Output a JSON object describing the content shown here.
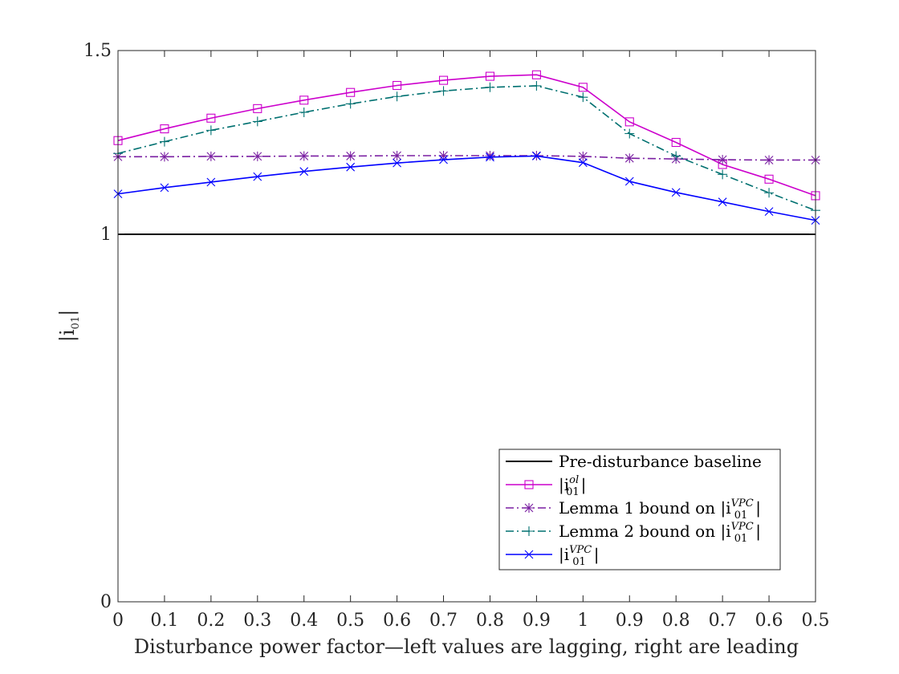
{
  "chart_data": {
    "type": "line",
    "title": "",
    "xlabel": "Disturbance power factor—left values are lagging, right are leading",
    "ylabel": "|i",
    "ylabel_sub": "01",
    "ylabel_close": "|",
    "categories": [
      "0",
      "0.1",
      "0.2",
      "0.3",
      "0.4",
      "0.5",
      "0.6",
      "0.7",
      "0.8",
      "0.9",
      "1",
      "0.9",
      "0.8",
      "0.7",
      "0.6",
      "0.5"
    ],
    "ylim": [
      0,
      1.5
    ],
    "yticks": [
      {
        "value": 0,
        "label": "0"
      },
      {
        "value": 1,
        "label": "1"
      },
      {
        "value": 1.5,
        "label": "1.5"
      }
    ],
    "grid": false,
    "legend_position": "bottom-right",
    "series": [
      {
        "name": "Pre-disturbance baseline",
        "legend_text": "Pre-disturbance baseline",
        "color": "#000000",
        "linestyle": "solid",
        "marker": "none",
        "values": [
          1,
          1,
          1,
          1,
          1,
          1,
          1,
          1,
          1,
          1,
          1,
          1,
          1,
          1,
          1,
          1
        ]
      },
      {
        "name": "|i01^ol|",
        "legend_prefix": "|i",
        "legend_sup": "ol",
        "legend_sub": "01",
        "legend_suffix": "|",
        "color": "#cc00cc",
        "linestyle": "solid",
        "marker": "square",
        "values": [
          1.255,
          1.287,
          1.316,
          1.342,
          1.365,
          1.386,
          1.405,
          1.419,
          1.43,
          1.434,
          1.4,
          1.306,
          1.25,
          1.19,
          1.15,
          1.105
        ]
      },
      {
        "name": "Lemma 1 bound on |i01^VPC|",
        "legend_prefix": "Lemma 1 bound on |i",
        "legend_sup": "VPC",
        "legend_sub": "01",
        "legend_suffix": "|",
        "color": "#7a1fa2",
        "linestyle": "dashdot",
        "marker": "asterisk",
        "values": [
          1.211,
          1.211,
          1.212,
          1.212,
          1.213,
          1.213,
          1.214,
          1.214,
          1.214,
          1.214,
          1.212,
          1.207,
          1.205,
          1.203,
          1.202,
          1.202
        ]
      },
      {
        "name": "Lemma 2 bound on |i01^VPC|",
        "legend_prefix": "Lemma 2 bound on |i",
        "legend_sup": "VPC",
        "legend_sub": "01",
        "legend_suffix": "|",
        "color": "#007070",
        "linestyle": "dashdot",
        "marker": "plus",
        "values": [
          1.22,
          1.252,
          1.283,
          1.307,
          1.332,
          1.355,
          1.375,
          1.39,
          1.4,
          1.404,
          1.373,
          1.274,
          1.213,
          1.163,
          1.113,
          1.065
        ]
      },
      {
        "name": "|i01^VPC|",
        "legend_prefix": "|i",
        "legend_sup": "VPC",
        "legend_sub": "01",
        "legend_suffix": "|",
        "color": "#0000ff",
        "linestyle": "solid",
        "marker": "x",
        "values": [
          1.11,
          1.127,
          1.142,
          1.157,
          1.171,
          1.183,
          1.194,
          1.203,
          1.21,
          1.213,
          1.195,
          1.144,
          1.114,
          1.088,
          1.062,
          1.038
        ]
      }
    ]
  }
}
